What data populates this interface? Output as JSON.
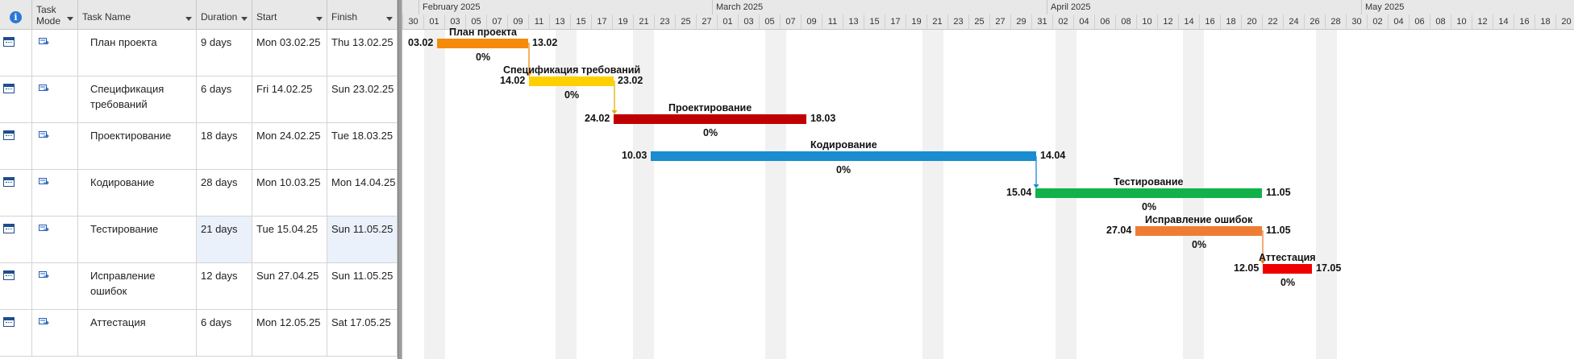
{
  "table": {
    "headers": {
      "info": "i",
      "task_mode_1": "Task",
      "task_mode_2": "Mode",
      "task_name": "Task Name",
      "duration": "Duration",
      "start": "Start",
      "finish": "Finish"
    },
    "rows": [
      {
        "name": "План проекта",
        "duration": "9 days",
        "start": "Mon 03.02.25",
        "finish": "Thu 13.02.25"
      },
      {
        "name": "Спецификация требований",
        "duration": "6 days",
        "start": "Fri 14.02.25",
        "finish": "Sun 23.02.25"
      },
      {
        "name": "Проектирование",
        "duration": "18 days",
        "start": "Mon 24.02.25",
        "finish": "Tue 18.03.25"
      },
      {
        "name": "Кодирование",
        "duration": "28 days",
        "start": "Mon 10.03.25",
        "finish": "Mon 14.04.25"
      },
      {
        "name": "Тестирование",
        "duration": "21 days",
        "start": "Tue 15.04.25",
        "finish": "Sun 11.05.25"
      },
      {
        "name": "Исправление ошибок",
        "duration": "12 days",
        "start": "Sun 27.04.25",
        "finish": "Sun 11.05.25"
      },
      {
        "name": "Аттестация",
        "duration": "6 days",
        "start": "Mon 12.05.25",
        "finish": "Sat 17.05.25"
      }
    ]
  },
  "timescale": {
    "months": [
      "February 2025",
      "March 2025",
      "April 2025",
      "May 2025"
    ],
    "days": [
      "30",
      "01",
      "03",
      "05",
      "07",
      "09",
      "11",
      "13",
      "15",
      "17",
      "19",
      "21",
      "23",
      "25",
      "27",
      "01",
      "03",
      "05",
      "07",
      "09",
      "11",
      "13",
      "15",
      "17",
      "19",
      "21",
      "23",
      "25",
      "27",
      "29",
      "31",
      "02",
      "04",
      "06",
      "08",
      "10",
      "12",
      "14",
      "16",
      "18",
      "20",
      "22",
      "24",
      "26",
      "28",
      "30",
      "02",
      "04",
      "06",
      "08",
      "10",
      "12",
      "14",
      "16",
      "18",
      "20"
    ]
  },
  "gantt": {
    "bars": [
      {
        "title": "План проекта",
        "start_label": "03.02",
        "end_label": "13.02",
        "percent": "0%",
        "color": "#f58a0b"
      },
      {
        "title": "Спецификация требований",
        "start_label": "14.02",
        "end_label": "23.02",
        "percent": "0%",
        "color": "#ffd000"
      },
      {
        "title": "Проектирование",
        "start_label": "24.02",
        "end_label": "18.03",
        "percent": "0%",
        "color": "#c00000"
      },
      {
        "title": "Кодирование",
        "start_label": "10.03",
        "end_label": "14.04",
        "percent": "0%",
        "color": "#1a8ccf"
      },
      {
        "title": "Тестирование",
        "start_label": "15.04",
        "end_label": "11.05",
        "percent": "0%",
        "color": "#12b24a"
      },
      {
        "title": "Исправление ошибок",
        "start_label": "27.04",
        "end_label": "11.05",
        "percent": "0%",
        "color": "#ee7d33"
      },
      {
        "title": "Аттестация",
        "start_label": "12.05",
        "end_label": "17.05",
        "percent": "0%",
        "color": "#ee0000"
      }
    ]
  }
}
